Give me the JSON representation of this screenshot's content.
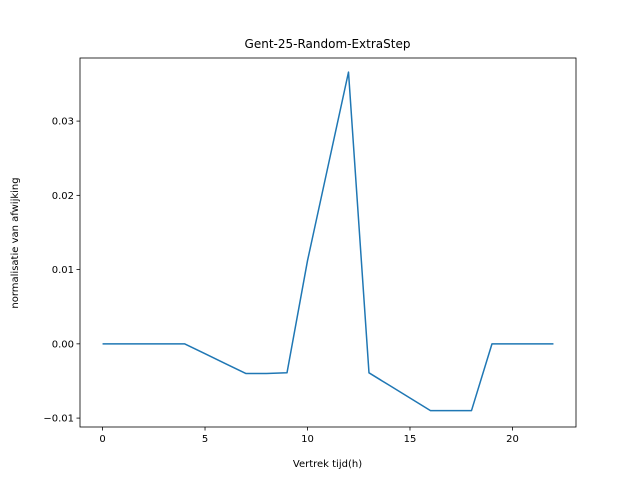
{
  "chart_data": {
    "type": "line",
    "title": "Gent-25-Random-ExtraStep",
    "xlabel": "Vertrek tijd(h)",
    "ylabel": "normalisatie van afwijking",
    "xlim": [
      -1.1,
      23.1
    ],
    "ylim": [
      -0.0112,
      0.0385
    ],
    "x_ticks": [
      0,
      5,
      10,
      15,
      20
    ],
    "x_tick_labels": [
      "0",
      "5",
      "10",
      "15",
      "20"
    ],
    "y_ticks": [
      -0.01,
      0.0,
      0.01,
      0.02,
      0.03
    ],
    "y_tick_labels": [
      "−0.01",
      "0.00",
      "0.01",
      "0.02",
      "0.03"
    ],
    "grid": false,
    "series": [
      {
        "color": "#1f77b4",
        "x": [
          0,
          1,
          2,
          3,
          4,
          5,
          6,
          7,
          8,
          9,
          10,
          11,
          12,
          13,
          14,
          15,
          16,
          17,
          18,
          19,
          20,
          21,
          22
        ],
        "y": [
          0.0,
          0.0,
          0.0,
          0.0,
          0.0,
          -0.00133,
          -0.00267,
          -0.004,
          -0.004,
          -0.0039,
          0.0112,
          0.0239,
          0.0366,
          -0.0039,
          -0.0056,
          -0.0073,
          -0.009,
          -0.009,
          -0.009,
          0.0,
          0.0,
          0.0,
          0.0
        ]
      }
    ]
  }
}
